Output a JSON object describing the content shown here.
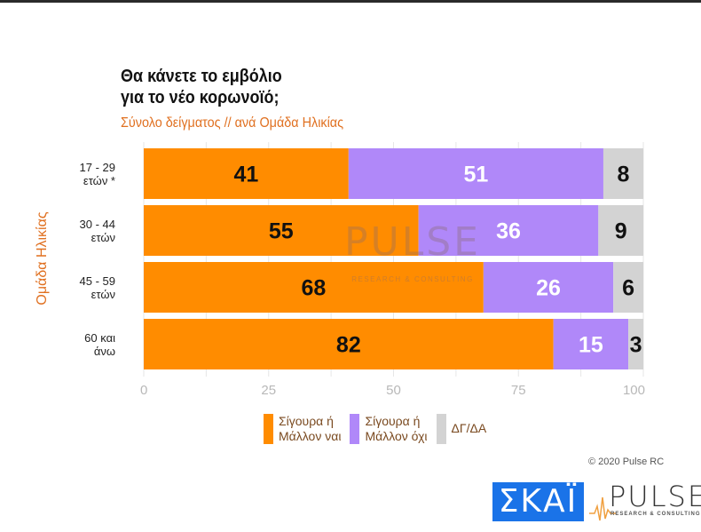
{
  "title_line1": "Θα κάνετε το εμβόλιο",
  "title_line2": "για το νέο κορωνοϊό;",
  "subtitle": "Σύνολο δείγματος // ανά Ομάδα Ηλικίας",
  "copyright": "© 2020 Pulse RC",
  "logos": {
    "skai": "ΣΚΑΪ",
    "pulse": "PULSE",
    "pulse_sub": "RESEARCH & CONSULTING"
  },
  "watermark": {
    "word": "PULSE",
    "sub": "RESEARCH & CONSULTING"
  },
  "colors": {
    "yes": "#ff8c00",
    "no": "#b088f9",
    "dk": "#d3d3d3",
    "accent": "#e07020"
  },
  "chart_data": {
    "type": "bar",
    "orientation": "horizontal",
    "stacked": true,
    "title": "Θα κάνετε το εμβόλιο για το νέο κορωνοϊό;",
    "subtitle": "Σύνολο δείγματος // ανά Ομάδα Ηλικίας",
    "xlabel": "",
    "ylabel": "Ομάδα Ηλικίας",
    "xlim": [
      0,
      100
    ],
    "xticks": [
      0,
      25,
      50,
      75,
      100
    ],
    "grid": true,
    "legend_position": "bottom",
    "categories": [
      [
        "17 - 29",
        "ετών *"
      ],
      [
        "30 - 44",
        "ετών"
      ],
      [
        "45 - 59",
        "ετών"
      ],
      [
        "60 και",
        "άνω"
      ]
    ],
    "series": [
      {
        "name": "Σίγουρα ή Μάλλον ναι",
        "legend_lines": [
          "Σίγουρα ή",
          "Μάλλον ναι"
        ],
        "color": "#ff8c00",
        "label_color": "#111111",
        "values": [
          41,
          55,
          68,
          82
        ]
      },
      {
        "name": "Σίγουρα ή Μάλλον όχι",
        "legend_lines": [
          "Σίγουρα ή",
          "Μάλλον όχι"
        ],
        "color": "#b088f9",
        "label_color": "#ffffff",
        "values": [
          51,
          36,
          26,
          15
        ]
      },
      {
        "name": "ΔΓ/ΔΑ",
        "legend_lines": [
          "ΔΓ/ΔΑ"
        ],
        "color": "#d3d3d3",
        "label_color": "#111111",
        "values": [
          8,
          9,
          6,
          3
        ]
      }
    ]
  }
}
